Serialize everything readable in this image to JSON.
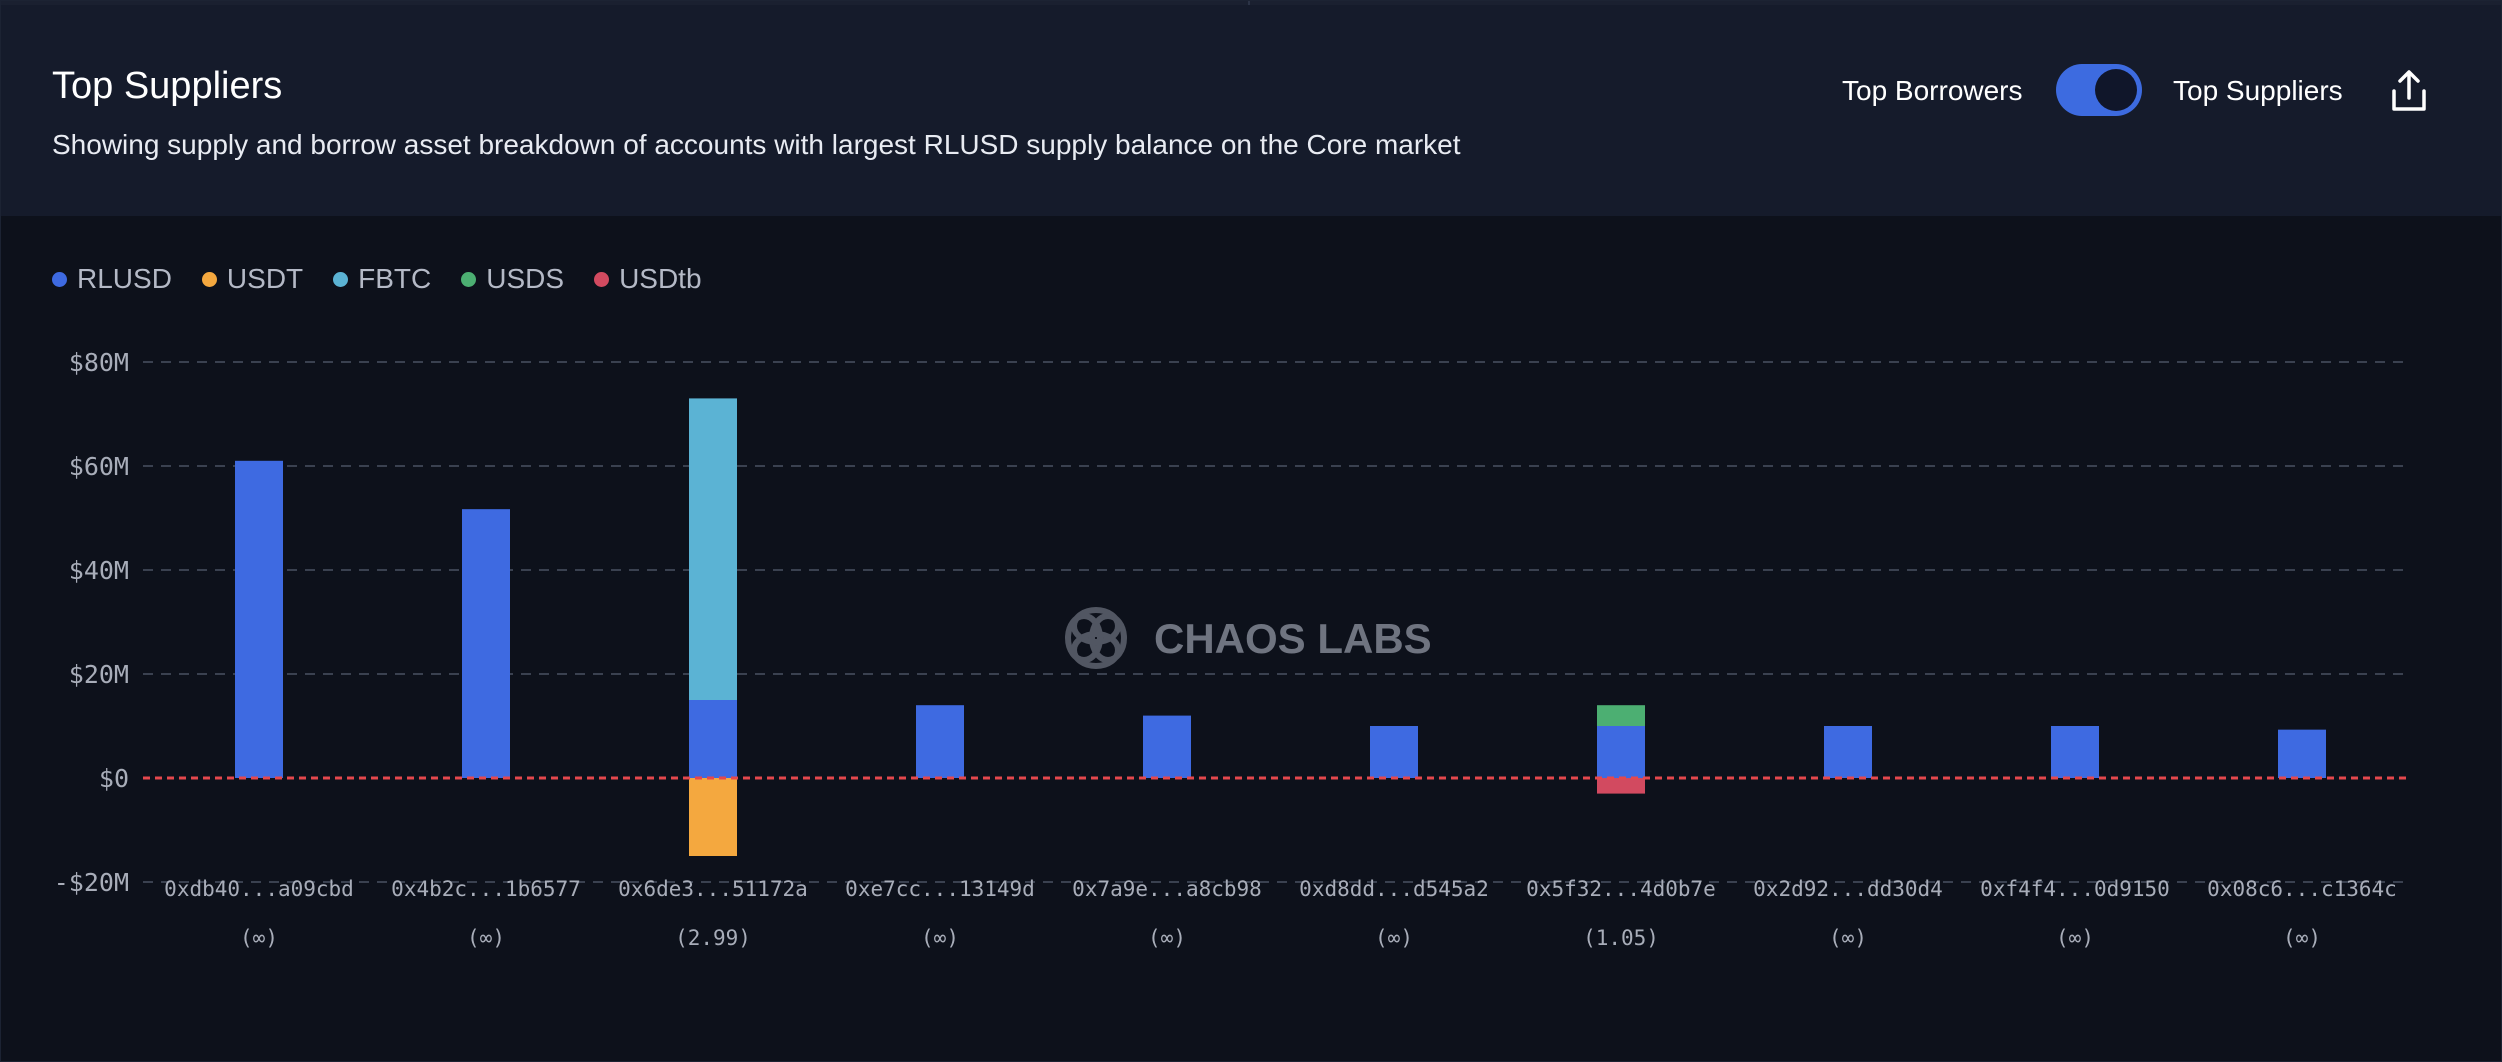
{
  "header": {
    "title": "Top Suppliers",
    "subtitle": "Showing supply and borrow asset breakdown of accounts with largest RLUSD supply balance on the Core market",
    "toggle_left_label": "Top Borrowers",
    "toggle_right_label": "Top Suppliers",
    "toggle_state": "Top Suppliers",
    "export_icon": "share-export-icon"
  },
  "watermark": {
    "text": "CHAOS LABS",
    "icon": "chaos-labs-logo-icon"
  },
  "colors": {
    "background": "#0d111b",
    "header_bg": "#151b2b",
    "accent": "#3d6be0",
    "zero_line": "#e5484d",
    "grid": "#3a4150"
  },
  "chart_data": {
    "type": "bar",
    "stacked": true,
    "ylabel": "",
    "xlabel": "",
    "ylim": [
      -20,
      80
    ],
    "yticks": [
      80,
      60,
      40,
      20,
      0,
      -20
    ],
    "ytick_labels": [
      "$80M",
      "$60M",
      "$40M",
      "$20M",
      "$0",
      "-$20M"
    ],
    "grid": true,
    "legend_position": "top-left",
    "categories": [
      "0xdb40...a09cbd",
      "0x4b2c...1b6577",
      "0x6de3...51172a",
      "0xe7cc...13149d",
      "0x7a9e...a8cb98",
      "0xd8dd...d545a2",
      "0x5f32...4d0b7e",
      "0x2d92...dd30d4",
      "0xf4f4...0d9150",
      "0x08c6...c1364c"
    ],
    "sub_labels": [
      "(∞)",
      "(∞)",
      "(2.99)",
      "(∞)",
      "(∞)",
      "(∞)",
      "(1.05)",
      "(∞)",
      "(∞)",
      "(∞)"
    ],
    "series": [
      {
        "name": "RLUSD",
        "color": "#3e6ae1",
        "values": [
          61,
          51.7,
          15,
          14,
          12,
          10,
          10,
          10,
          10,
          9.3
        ]
      },
      {
        "name": "USDT",
        "color": "#f4a83f",
        "values": [
          0,
          0,
          -15,
          0,
          0,
          0,
          0,
          0,
          0,
          0
        ]
      },
      {
        "name": "FBTC",
        "color": "#5bb3d4",
        "values": [
          0,
          0,
          58,
          0,
          0,
          0,
          0,
          0,
          0,
          0
        ]
      },
      {
        "name": "USDS",
        "color": "#4caf72",
        "values": [
          0,
          0,
          0,
          0,
          0,
          0,
          4,
          0,
          0,
          0
        ]
      },
      {
        "name": "USDtb",
        "color": "#d24a60",
        "values": [
          0,
          0,
          0,
          0,
          0,
          0,
          -3,
          0,
          0,
          0
        ]
      }
    ]
  }
}
